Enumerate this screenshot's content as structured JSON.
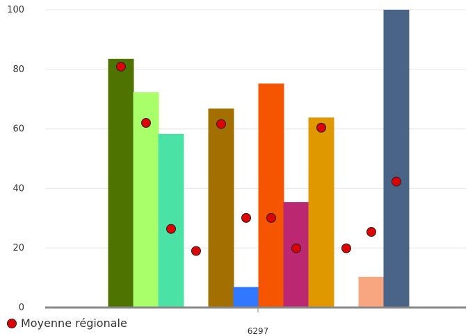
{
  "chart_data": {
    "type": "bar",
    "categories": [
      "6297"
    ],
    "ylim": [
      0,
      100
    ],
    "yticks": [
      "0",
      "20",
      "40",
      "60",
      "80",
      "100"
    ],
    "grid": true,
    "legend_position": "bottom-left",
    "bars": [
      {
        "value": 83.5,
        "color": "#4e7300"
      },
      {
        "value": 72.3,
        "color": "#a8ff6a"
      },
      {
        "value": 58.3,
        "color": "#4be3a5"
      },
      {
        "value": 0,
        "color": "#cccccc"
      },
      {
        "value": 66.8,
        "color": "#a37000"
      },
      {
        "value": 6.9,
        "color": "#2f78ff"
      },
      {
        "value": 75.2,
        "color": "#f55500"
      },
      {
        "value": 35.4,
        "color": "#bb2770"
      },
      {
        "value": 63.8,
        "color": "#e09800"
      },
      {
        "value": 0,
        "color": "#cccccc"
      },
      {
        "value": 10.3,
        "color": "#f7a67f"
      },
      {
        "value": 100.0,
        "color": "#4a6488"
      }
    ],
    "markers": [
      80.9,
      62.0,
      26.4,
      19.0,
      61.6,
      30.1,
      30.1,
      19.9,
      60.4,
      19.9,
      25.4,
      42.3
    ],
    "marker_series": {
      "name": "Moyenne régionale",
      "color": "#dd0000"
    }
  }
}
